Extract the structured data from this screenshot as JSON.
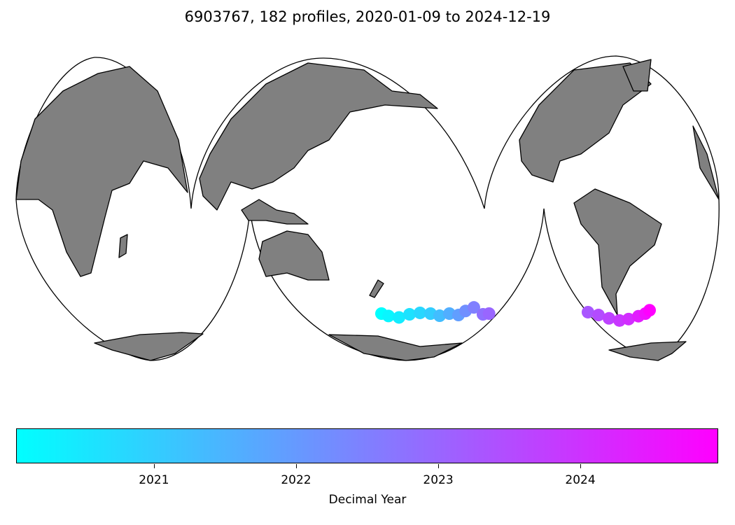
{
  "title": "6903767, 182 profiles, 2020-01-09 to 2024-12-19",
  "colors": {
    "land": "#808080",
    "coast": "#000000",
    "cmap_start": "#00ffff",
    "cmap_end": "#ff00ff"
  },
  "chart_data": {
    "type": "scatter",
    "title": "6903767, 182 profiles, 2020-01-09 to 2024-12-19",
    "projection": "Interrupted Goode Homolosine",
    "colormap": "cool",
    "colorbar": {
      "label": "Decimal Year",
      "range": [
        2020.03,
        2024.97
      ],
      "ticks": [
        2021,
        2022,
        2023,
        2024
      ],
      "tick_labels": [
        "2021",
        "2022",
        "2023",
        "2024"
      ]
    },
    "trajectory": [
      {
        "year": 2020.03,
        "lon": 144.3,
        "lat": -53.0
      },
      {
        "year": 2020.2,
        "lon": 151.8,
        "lat": -54.0
      },
      {
        "year": 2020.4,
        "lon": 163.0,
        "lat": -54.6
      },
      {
        "year": 2020.6,
        "lon": 174.2,
        "lat": -53.3
      },
      {
        "year": 2020.8,
        "lon": -174.6,
        "lat": -52.7
      },
      {
        "year": 2021.0,
        "lon": -163.4,
        "lat": -53.0
      },
      {
        "year": 2021.3,
        "lon": -153.7,
        "lat": -53.9
      },
      {
        "year": 2021.6,
        "lon": -143.3,
        "lat": -53.0
      },
      {
        "year": 2021.9,
        "lon": -133.6,
        "lat": -53.6
      },
      {
        "year": 2022.2,
        "lon": -126.1,
        "lat": -51.9
      },
      {
        "year": 2022.5,
        "lon": -117.2,
        "lat": -50.4
      },
      {
        "year": 2022.8,
        "lon": -107.5,
        "lat": -53.3
      },
      {
        "year": 2023.0,
        "lon": -101.0,
        "lat": -53.0
      },
      {
        "year": 2023.3,
        "lon": -96.3,
        "lat": -52.4
      },
      {
        "year": 2023.5,
        "lon": -85.1,
        "lat": -53.6
      },
      {
        "year": 2023.7,
        "lon": -73.9,
        "lat": -55.0
      },
      {
        "year": 2023.9,
        "lon": -62.7,
        "lat": -55.9
      },
      {
        "year": 2024.1,
        "lon": -53.0,
        "lat": -55.3
      },
      {
        "year": 2024.4,
        "lon": -42.5,
        "lat": -54.1
      },
      {
        "year": 2024.7,
        "lon": -35.1,
        "lat": -53.0
      },
      {
        "year": 2024.97,
        "lon": -30.6,
        "lat": -51.6
      }
    ]
  }
}
